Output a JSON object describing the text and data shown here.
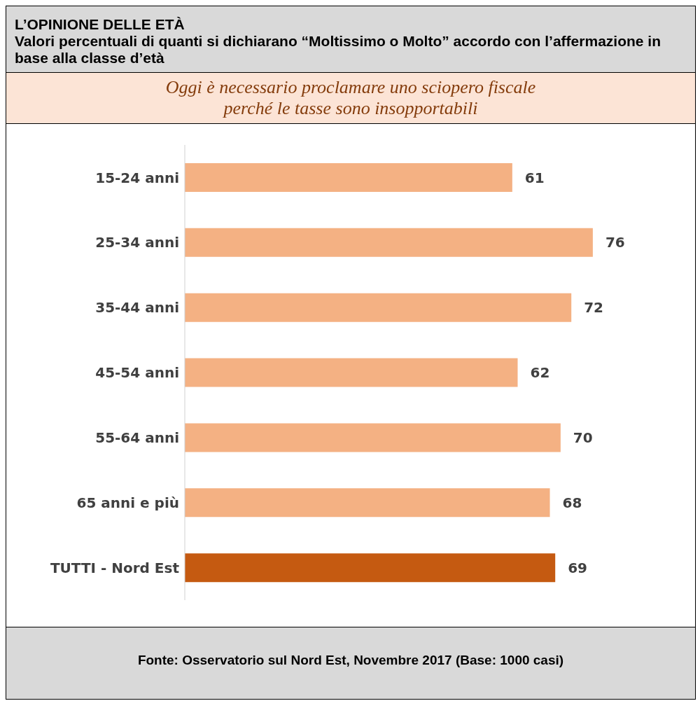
{
  "chart_data": {
    "type": "bar",
    "orientation": "horizontal",
    "title": "L’OPINIONE DELLE ETÀ",
    "subtitle": "Valori percentuali di quanti si dichiarano “Moltissimo o Molto” accordo con l’affermazione in base alla classe d’età",
    "annotations": [
      "Oggi è necessario proclamare uno sciopero fiscale perché le tasse sono insopportabili",
      "Fonte: Osservatorio sul Nord Est, Novembre 2017 (Base: 1000 casi)"
    ],
    "categories": [
      "15-24 anni",
      "25-34 anni",
      "35-44 anni",
      "45-54 anni",
      "55-64 anni",
      "65 anni e più",
      "TUTTI - Nord Est"
    ],
    "values": [
      61,
      76,
      72,
      62,
      70,
      68,
      69
    ],
    "colors": [
      "#f4b183",
      "#f4b183",
      "#f4b183",
      "#f4b183",
      "#f4b183",
      "#f4b183",
      "#c55a11"
    ],
    "data_labels": true,
    "grid": false,
    "legend": false
  }
}
